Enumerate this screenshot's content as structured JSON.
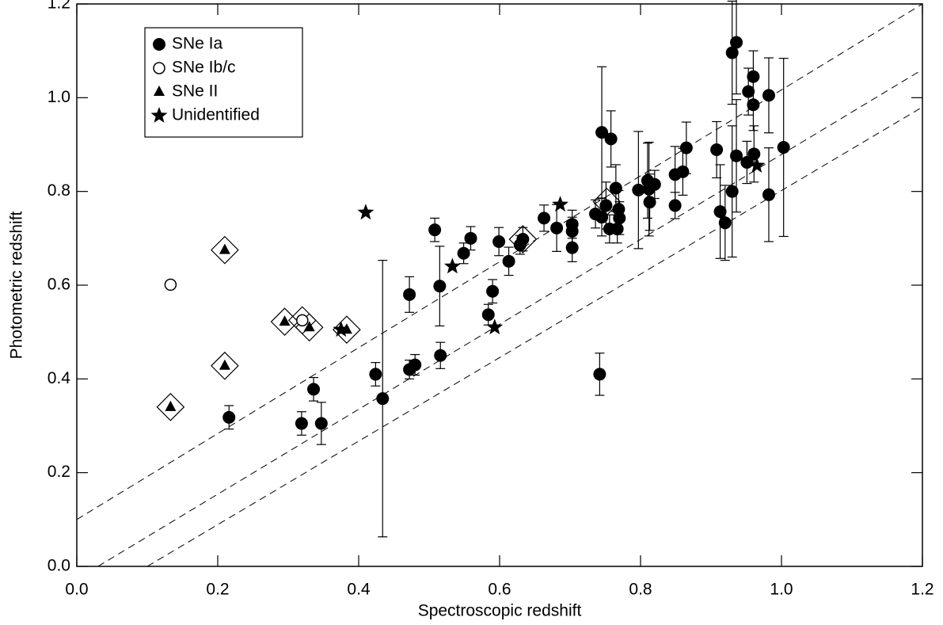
{
  "chart_data": {
    "type": "scatter",
    "xlabel": "Spectroscopic redshift",
    "ylabel": "Photometric redshift",
    "xlim": [
      0,
      1.2
    ],
    "ylim": [
      0,
      1.2
    ],
    "xticks": [
      {
        "value": 0,
        "label": "0.0"
      },
      0.2,
      0.4,
      0.6,
      0.8,
      {
        "value": 1,
        "label": "1.0"
      },
      1.2
    ],
    "yticks": [
      {
        "value": 0,
        "label": "0.0"
      },
      0.2,
      0.4,
      0.6,
      0.8,
      {
        "value": 1,
        "label": "1.0"
      },
      1.2
    ],
    "legend": "upper left",
    "series": [
      {
        "name": "SNe Ia",
        "marker": "circle",
        "color": "#000000",
        "x": [
          0.216,
          0.319,
          0.336,
          0.347,
          0.424,
          0.434,
          0.472,
          0.48,
          0.472,
          0.508,
          0.516,
          0.515,
          0.549,
          0.559,
          0.584,
          0.59,
          0.599,
          0.613,
          0.629,
          0.633,
          0.663,
          0.681,
          0.703,
          0.703,
          0.703,
          0.742,
          0.745,
          0.758,
          0.736,
          0.745,
          0.751,
          0.756,
          0.767,
          0.77,
          0.769,
          0.765,
          0.797,
          0.81,
          0.812,
          0.813,
          0.82,
          0.849,
          0.849,
          0.86,
          0.865,
          0.908,
          0.913,
          0.92,
          0.93,
          0.936,
          0.93,
          0.936,
          0.951,
          0.953,
          0.96,
          0.96,
          0.961,
          0.982,
          0.982,
          1.003
        ],
        "y": [
          0.318,
          0.305,
          0.378,
          0.305,
          0.41,
          0.358,
          0.42,
          0.43,
          0.58,
          0.718,
          0.45,
          0.598,
          0.668,
          0.7,
          0.537,
          0.587,
          0.693,
          0.651,
          0.686,
          0.698,
          0.743,
          0.722,
          0.68,
          0.715,
          0.73,
          0.41,
          0.926,
          0.912,
          0.752,
          0.745,
          0.77,
          0.72,
          0.72,
          0.743,
          0.762,
          0.807,
          0.803,
          0.823,
          0.805,
          0.777,
          0.815,
          0.77,
          0.836,
          0.842,
          0.893,
          0.889,
          0.757,
          0.733,
          1.096,
          1.118,
          0.8,
          0.876,
          0.862,
          1.013,
          0.985,
          1.045,
          0.88,
          1.005,
          0.793,
          0.894
        ],
        "yerr": [
          0.025,
          0.025,
          0.025,
          0.045,
          0.025,
          0.295,
          0.02,
          0.022,
          0.038,
          0.025,
          0.028,
          0.085,
          0.022,
          0.025,
          0.022,
          0.025,
          0.03,
          0.03,
          0.02,
          0.025,
          0.028,
          0.05,
          0.03,
          0.03,
          0.03,
          0.045,
          0.14,
          0.06,
          0.03,
          0.04,
          0.05,
          0.03,
          0.03,
          0.035,
          0.04,
          0.05,
          0.125,
          0.08,
          0.1,
          0.06,
          0.03,
          0.028,
          0.06,
          0.05,
          0.055,
          0.06,
          0.1,
          0.08,
          0.11,
          0.11,
          0.14,
          0.12,
          0.045,
          0.05,
          0.055,
          0.055,
          0.06,
          0.08,
          0.1,
          0.19
        ]
      },
      {
        "name": "SNe Ib/c",
        "marker": "open-circle",
        "color": "#000000",
        "x": [
          0.133,
          0.32
        ],
        "y": [
          0.601,
          0.525
        ]
      },
      {
        "name": "SNe II",
        "marker": "triangle",
        "color": "#000000",
        "x": [
          0.133,
          0.21,
          0.21,
          0.295,
          0.33,
          0.383
        ],
        "y": [
          0.34,
          0.428,
          0.675,
          0.522,
          0.51,
          0.505
        ]
      },
      {
        "name": "Unidentified",
        "marker": "star",
        "color": "#000000",
        "x": [
          0.41,
          0.533,
          0.593,
          0.686,
          0.375,
          0.965
        ],
        "y": [
          0.755,
          0.64,
          0.51,
          0.772,
          0.505,
          0.855
        ]
      }
    ],
    "diamond_x": [
      0.133,
      0.21,
      0.21,
      0.295,
      0.32,
      0.33,
      0.383,
      0.633,
      0.752
    ],
    "diamond_y": [
      0.34,
      0.428,
      0.675,
      0.522,
      0.525,
      0.51,
      0.505,
      0.698,
      0.778
    ],
    "reference_lines": [
      {
        "x": [
          0,
          1.2
        ],
        "y": [
          0.1,
          1.2
        ]
      },
      {
        "x": [
          0.03,
          1.2
        ],
        "y": [
          0,
          1.06
        ]
      },
      {
        "x": [
          0.1,
          1.2
        ],
        "y": [
          0,
          0.98
        ]
      }
    ]
  }
}
